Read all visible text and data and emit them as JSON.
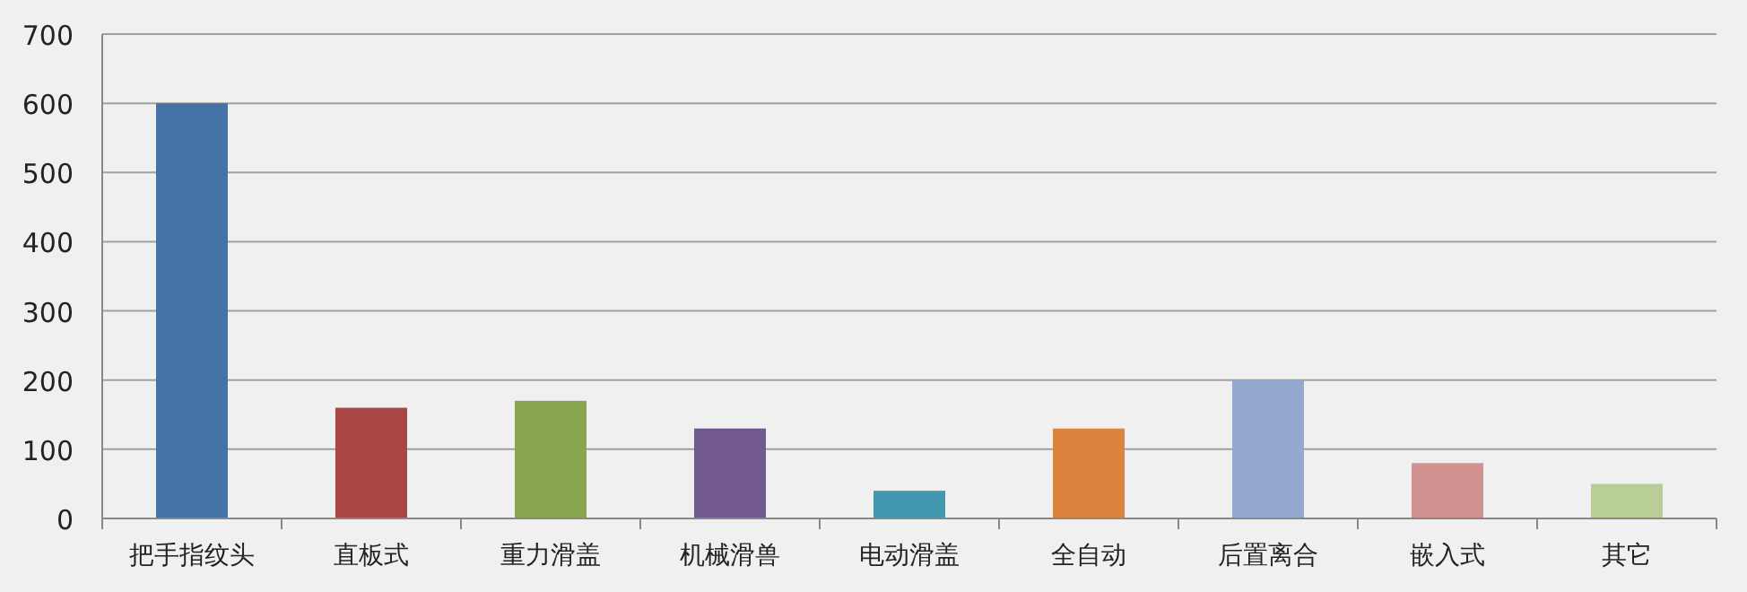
{
  "chart_data": {
    "type": "bar",
    "categories": [
      "把手指纹头",
      "直板式",
      "重力滑盖",
      "机械滑兽",
      "电动滑盖",
      "全自动",
      "后置离合",
      "嵌入式",
      "其它"
    ],
    "values": [
      600,
      160,
      170,
      130,
      40,
      130,
      200,
      80,
      50
    ],
    "colors": [
      "#4572a7",
      "#aa4643",
      "#89a54e",
      "#71588f",
      "#4198af",
      "#db843d",
      "#93a9cf",
      "#d19392",
      "#b9cd96"
    ],
    "ylim": [
      0,
      700
    ],
    "yticks": [
      0,
      100,
      200,
      300,
      400,
      500,
      600,
      700
    ],
    "grid": "y"
  }
}
